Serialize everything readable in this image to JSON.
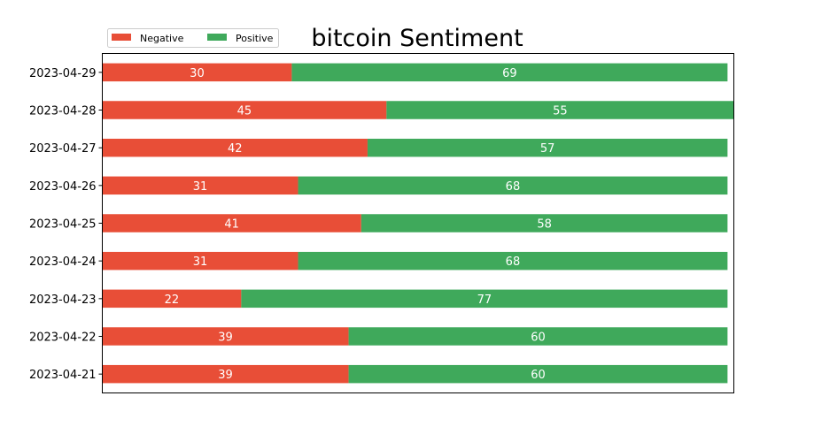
{
  "chart_data": {
    "type": "bar",
    "orientation": "horizontal",
    "stacked": true,
    "title": "bitcoin Sentiment",
    "categories": [
      "2023-04-21",
      "2023-04-22",
      "2023-04-23",
      "2023-04-24",
      "2023-04-25",
      "2023-04-26",
      "2023-04-27",
      "2023-04-28",
      "2023-04-29"
    ],
    "series": [
      {
        "name": "Negative",
        "color": "#e84e37",
        "values": [
          39,
          39,
          22,
          31,
          41,
          31,
          42,
          45,
          30
        ]
      },
      {
        "name": "Positive",
        "color": "#3fa95b",
        "values": [
          60,
          60,
          77,
          68,
          58,
          68,
          57,
          55,
          69
        ]
      }
    ],
    "legend_position": "top-left",
    "grid": false
  }
}
